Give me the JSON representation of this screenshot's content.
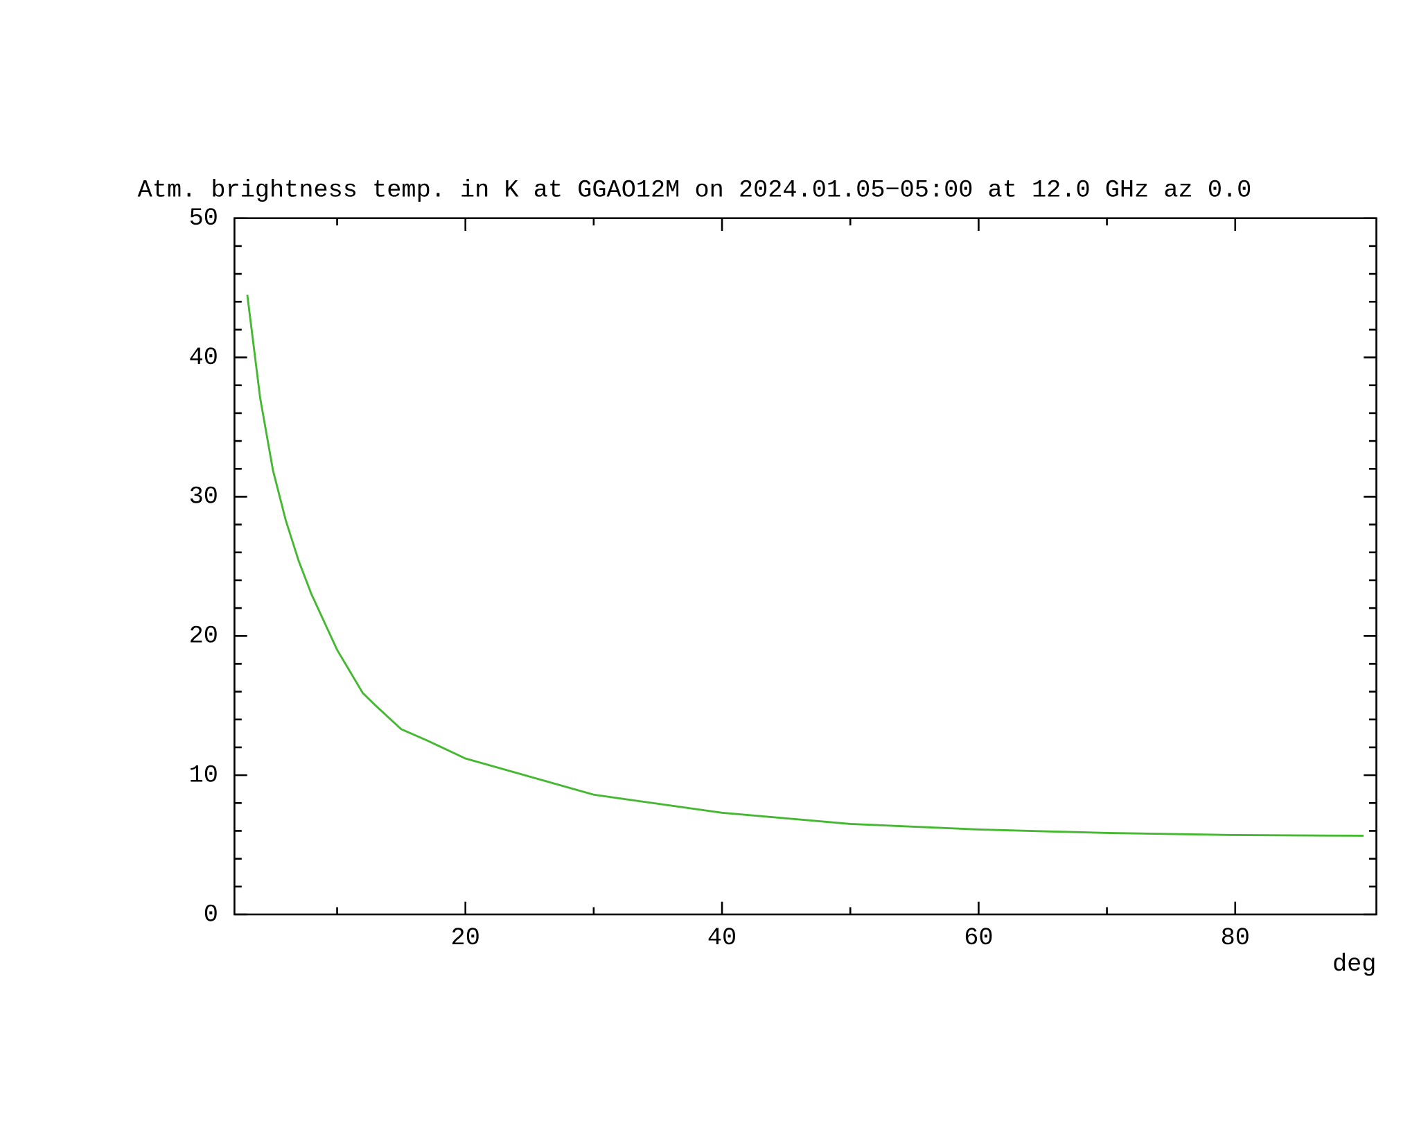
{
  "chart_data": {
    "type": "line",
    "title": "Atm. brightness temp. in K at GGAO12M  on 2024.01.05−05:00 at  12.0 GHz az    0.0",
    "x_label": "deg",
    "x": [
      3,
      4,
      5,
      6,
      7,
      8,
      10,
      12,
      13,
      15,
      17,
      20,
      25,
      30,
      40,
      50,
      60,
      70,
      80,
      90
    ],
    "series": [
      {
        "color": "#44b830",
        "values": [
          44.5,
          37.1,
          31.9,
          28.3,
          25.4,
          23.0,
          19.0,
          15.9,
          15.0,
          13.3,
          12.5,
          11.2,
          9.9,
          8.6,
          7.3,
          6.5,
          6.1,
          5.85,
          5.7,
          5.65
        ]
      }
    ],
    "xlim": [
      2,
      91
    ],
    "ylim": [
      0,
      50
    ],
    "xticks": [
      20,
      40,
      60,
      80
    ],
    "yticks": [
      0,
      10,
      20,
      30,
      40,
      50
    ],
    "minor_xticks": [
      10,
      30,
      50,
      70
    ],
    "minor_yticks": [
      2,
      4,
      6,
      8,
      12,
      14,
      16,
      18,
      22,
      24,
      26,
      28,
      32,
      34,
      36,
      38,
      42,
      44,
      46,
      48
    ]
  }
}
